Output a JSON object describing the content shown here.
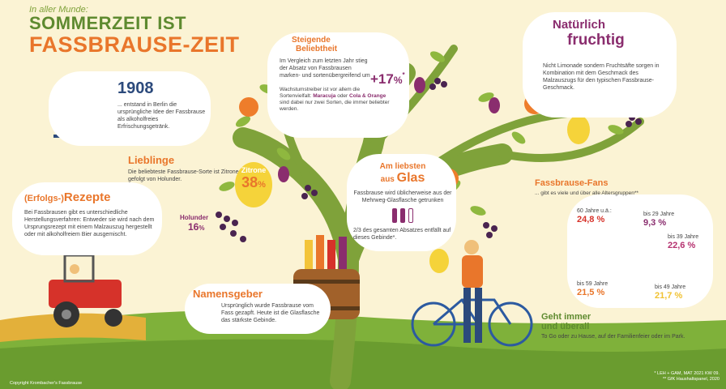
{
  "header": {
    "kicker": "In aller Munde:",
    "title_line1": "SOMMERZEIT IST",
    "title_line2": "FASSBRAUSE-ZEIT"
  },
  "year_1908": {
    "year": "1908",
    "text": "... entstand in Berlin die ursprüngliche Idee der Fassbrause als alkoholfreies Erfrischungsgetränk."
  },
  "lieblinge": {
    "heading": "Lieblinge",
    "text": "Die beliebteste Fassbrause-Sorte ist Zitrone, gefolgt von Holunder.",
    "zitrone_label": "Zitrone",
    "zitrone_value": "38",
    "zitrone_unit": "%",
    "holunder_label": "Holunder",
    "holunder_value": "16",
    "holunder_unit": "%"
  },
  "rezepte": {
    "heading_prefix": "(Erfolgs-)",
    "heading_main": "Rezepte",
    "text": "Bei Fassbrausen gibt es unterschiedliche Herstellungsverfahren: Entweder sie wird nach dem Ursprungsrezept mit einem Malzauszug hergestellt oder mit alkoholfreiem Bier ausgemischt."
  },
  "beliebtheit": {
    "heading_line1": "Steigende",
    "heading_line2": "Beliebtheit",
    "text": "Im Vergleich zum letzten Jahr stieg der Absatz von Fassbrausen marken- und sortenübergreifend um",
    "value": "+17",
    "unit": "%",
    "value_mark": "*",
    "growth_text_1": "Wachstumstreiber ist vor allem die Sortenvielfalt:",
    "growth_highlight_1": "Maracuja",
    "growth_text_2": "oder",
    "growth_highlight_2": "Cola & Orange",
    "growth_text_3": "sind dabei nur zwei Sorten, die immer beliebter werden."
  },
  "fruchtig": {
    "heading_line1": "Natürlich",
    "heading_line2": "fruchtig",
    "text": "Nicht Limonade sondern Fruchtsäfte sorgen in Kombination mit dem Geschmack des Malzauszugs für den typischen Fassbrause-Geschmack."
  },
  "glas": {
    "heading_line1": "Am liebsten",
    "heading_line2a": "aus",
    "heading_line2b": "Glas",
    "text": "Fassbrause wird üblicherweise aus der Mehrweg-Glasflasche getrunken",
    "share_text": "2/3 des gesamten Absatzes entfällt auf dieses Gebinde*."
  },
  "namensgeber": {
    "heading": "Namensgeber",
    "text": "Ursprünglich wurde Fassbrause vom Fass gezapft. Heute ist die Glasflasche das stärkste Gebinde."
  },
  "fans": {
    "heading": "Fassbrause-Fans",
    "subtitle": "... gibt es viele und über alle Altersgruppen**",
    "segments": [
      {
        "label": "bis 29 Jahre",
        "value": 9.3,
        "display": "9,3 %",
        "color": "#8a2d6e"
      },
      {
        "label": "bis 39 Jahre",
        "value": 22.6,
        "display": "22,6 %",
        "color": "#b5316f"
      },
      {
        "label": "bis 49 Jahre",
        "value": 21.7,
        "display": "21,7 %",
        "color": "#f1c232"
      },
      {
        "label": "bis 59 Jahre",
        "value": 21.5,
        "display": "21,5 %",
        "color": "#e9762b"
      },
      {
        "label": "60 Jahre u.ä.:",
        "value": 24.8,
        "display": "24,8 %",
        "color": "#d6322a"
      }
    ]
  },
  "ueberall": {
    "heading_line1": "Geht immer",
    "heading_line2": "und überall",
    "text": "To Go oder zu Hause, auf der Familienfeier oder im Park."
  },
  "footer": {
    "copyright": "Copyright Krombacher's Fassbrause",
    "note1": "* LEH + GAM, MAT 2021 KW 09.",
    "note2": "** GfK Haushaltspanel, 2020"
  },
  "colors": {
    "background": "#fbf3d4",
    "orange": "#e9762b",
    "green": "#5e8a2f",
    "purple": "#8a2d6e",
    "trunk": "#7fa23a"
  }
}
